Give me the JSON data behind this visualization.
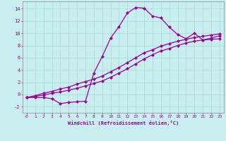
{
  "xlabel": "Windchill (Refroidissement éolien,°C)",
  "background_color": "#c8eef0",
  "line_color": "#990099",
  "xlim": [
    -0.5,
    23.5
  ],
  "ylim": [
    -3.0,
    15.2
  ],
  "xticks": [
    0,
    1,
    2,
    3,
    4,
    5,
    6,
    7,
    8,
    9,
    10,
    11,
    12,
    13,
    14,
    15,
    16,
    17,
    18,
    19,
    20,
    21,
    22,
    23
  ],
  "yticks": [
    -2,
    0,
    2,
    4,
    6,
    8,
    10,
    12,
    14
  ],
  "curve1_x": [
    0,
    1,
    2,
    3,
    4,
    5,
    6,
    7,
    8,
    9,
    10,
    11,
    12,
    13,
    14,
    15,
    16,
    17,
    18,
    19,
    20,
    21,
    22,
    23
  ],
  "curve1_y": [
    -0.5,
    -0.5,
    -0.5,
    -0.7,
    -1.5,
    -1.3,
    -1.2,
    -1.1,
    3.5,
    6.2,
    9.2,
    11.1,
    13.3,
    14.2,
    14.1,
    12.8,
    12.5,
    11.0,
    9.8,
    9.1,
    10.0,
    8.9,
    9.2,
    9.6
  ],
  "curve2_x": [
    0,
    1,
    2,
    3,
    4,
    5,
    6,
    7,
    8,
    9,
    10,
    11,
    12,
    13,
    14,
    15,
    16,
    17,
    18,
    19,
    20,
    21,
    22,
    23
  ],
  "curve2_y": [
    -0.5,
    -0.3,
    -0.1,
    0.2,
    0.4,
    0.7,
    1.0,
    1.4,
    1.8,
    2.2,
    2.8,
    3.5,
    4.2,
    5.0,
    5.8,
    6.5,
    7.1,
    7.5,
    8.0,
    8.4,
    8.7,
    8.9,
    9.0,
    9.1
  ],
  "curve3_x": [
    0,
    1,
    2,
    3,
    4,
    5,
    6,
    7,
    8,
    9,
    10,
    11,
    12,
    13,
    14,
    15,
    16,
    17,
    18,
    19,
    20,
    21,
    22,
    23
  ],
  "curve3_y": [
    -0.5,
    -0.2,
    0.2,
    0.5,
    0.9,
    1.2,
    1.7,
    2.1,
    2.5,
    3.0,
    3.7,
    4.4,
    5.2,
    6.0,
    6.8,
    7.3,
    7.9,
    8.3,
    8.7,
    9.0,
    9.3,
    9.5,
    9.7,
    9.9
  ],
  "grid_color": "#a8d8d8",
  "marker": "D",
  "markersize": 2.0,
  "linewidth": 0.9
}
